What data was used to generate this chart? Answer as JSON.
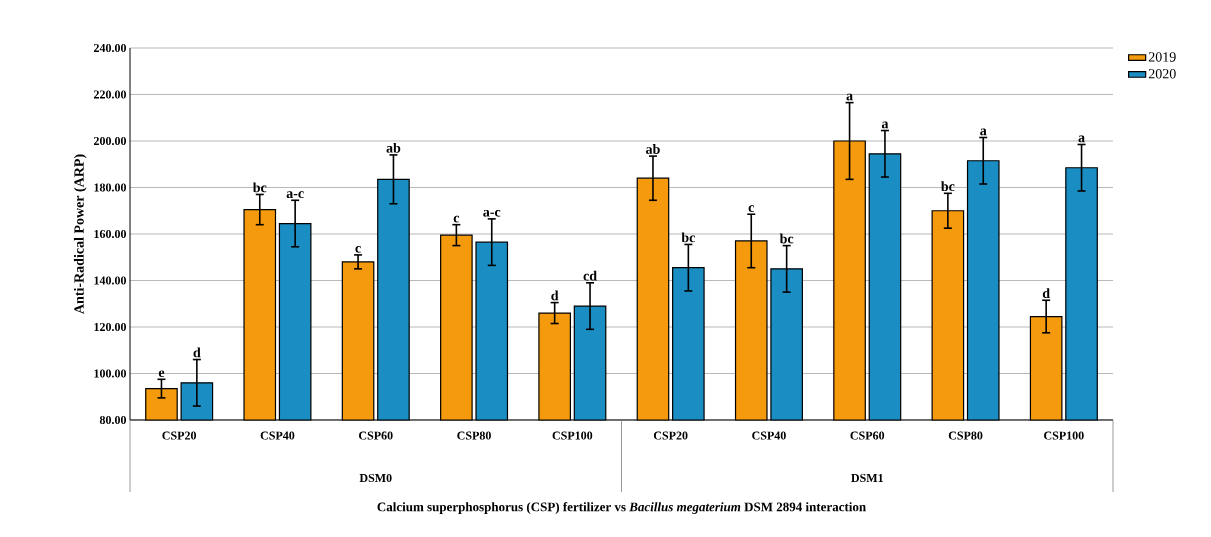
{
  "chart_data": {
    "type": "bar",
    "ylabel": "Anti-Radical Power (ARP)",
    "xlabel": "Calcium superphosphorus (CSP) fertilizer vs *Bacillus megaterium* DSM 2894 interaction",
    "annotations": [
      "DSM0",
      "DSM1"
    ],
    "categories": [
      "CSP20",
      "CSP40",
      "CSP60",
      "CSP80",
      "CSP100",
      "CSP20",
      "CSP40",
      "CSP60",
      "CSP80",
      "CSP100"
    ],
    "series": [
      {
        "name": "2019",
        "color": "#f59a0c",
        "values": [
          93.5,
          170.5,
          148,
          159.5,
          126,
          184,
          157,
          200,
          170,
          124.5
        ],
        "errors": [
          4,
          6.5,
          3,
          4.5,
          4.5,
          9.5,
          11.5,
          16.5,
          7.5,
          7
        ],
        "value_labels": [
          "e",
          "bc",
          "c",
          "c",
          "d",
          "ab",
          "c",
          "a",
          "bc",
          "d"
        ]
      },
      {
        "name": "2020",
        "color": "#1a8dc2",
        "values": [
          96,
          164.5,
          183.5,
          156.5,
          129,
          145.5,
          145,
          194.5,
          191.5,
          188.5
        ],
        "errors": [
          10,
          10,
          10.5,
          10,
          10,
          10,
          10,
          10,
          10,
          10
        ],
        "value_labels": [
          "d",
          "a-c",
          "ab",
          "a-c",
          "cd",
          "bc",
          "bc",
          "a",
          "a",
          "a"
        ]
      }
    ],
    "ylim": [
      80,
      240
    ],
    "yticks": [
      {
        "value": 80,
        "label": "80.00"
      },
      {
        "value": 100,
        "label": "100.00"
      },
      {
        "value": 120,
        "label": "120.00"
      },
      {
        "value": 140,
        "label": "140.00"
      },
      {
        "value": 160,
        "label": "160.00"
      },
      {
        "value": 180,
        "label": "180.00"
      },
      {
        "value": 200,
        "label": "200.00"
      },
      {
        "value": 220,
        "label": "220.00"
      },
      {
        "value": 240,
        "label": "240.00"
      }
    ],
    "grid": "y",
    "legend": "top right"
  }
}
